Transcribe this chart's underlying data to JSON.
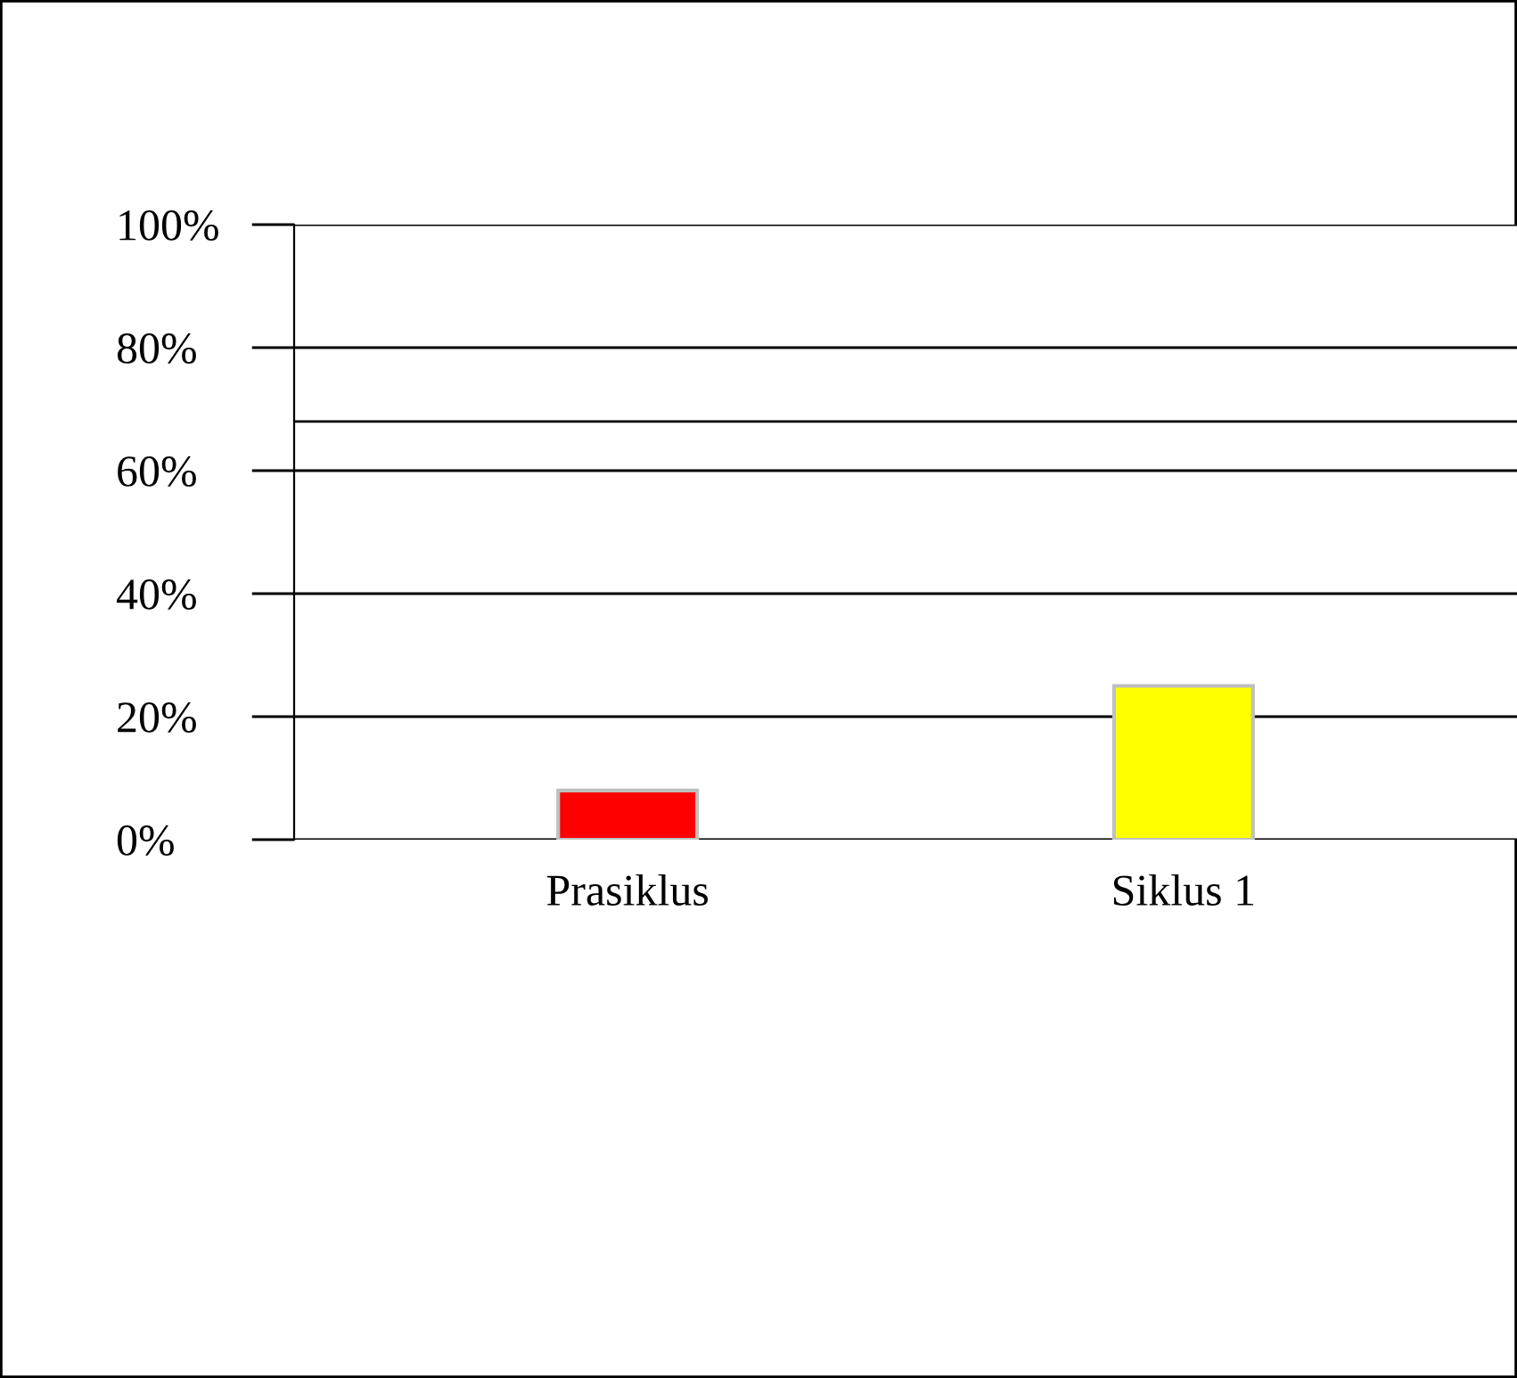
{
  "chart_data": {
    "type": "bar",
    "categories": [
      "Prasiklus",
      "Siklus 1"
    ],
    "values": [
      8,
      25
    ],
    "colors": [
      "#ff0000",
      "#ffff00"
    ],
    "ylim": [
      0,
      100
    ],
    "yticks": [
      {
        "value": 0,
        "label": "0%"
      },
      {
        "value": 20,
        "label": "20%"
      },
      {
        "value": 40,
        "label": "40%"
      },
      {
        "value": 60,
        "label": "60%"
      },
      {
        "value": 80,
        "label": "80%"
      },
      {
        "value": 100,
        "label": "100%"
      }
    ],
    "grid": "y",
    "ref_lines": [
      {
        "axis": "y",
        "value": 68,
        "color": "#000000",
        "line_style": "solid"
      }
    ]
  }
}
